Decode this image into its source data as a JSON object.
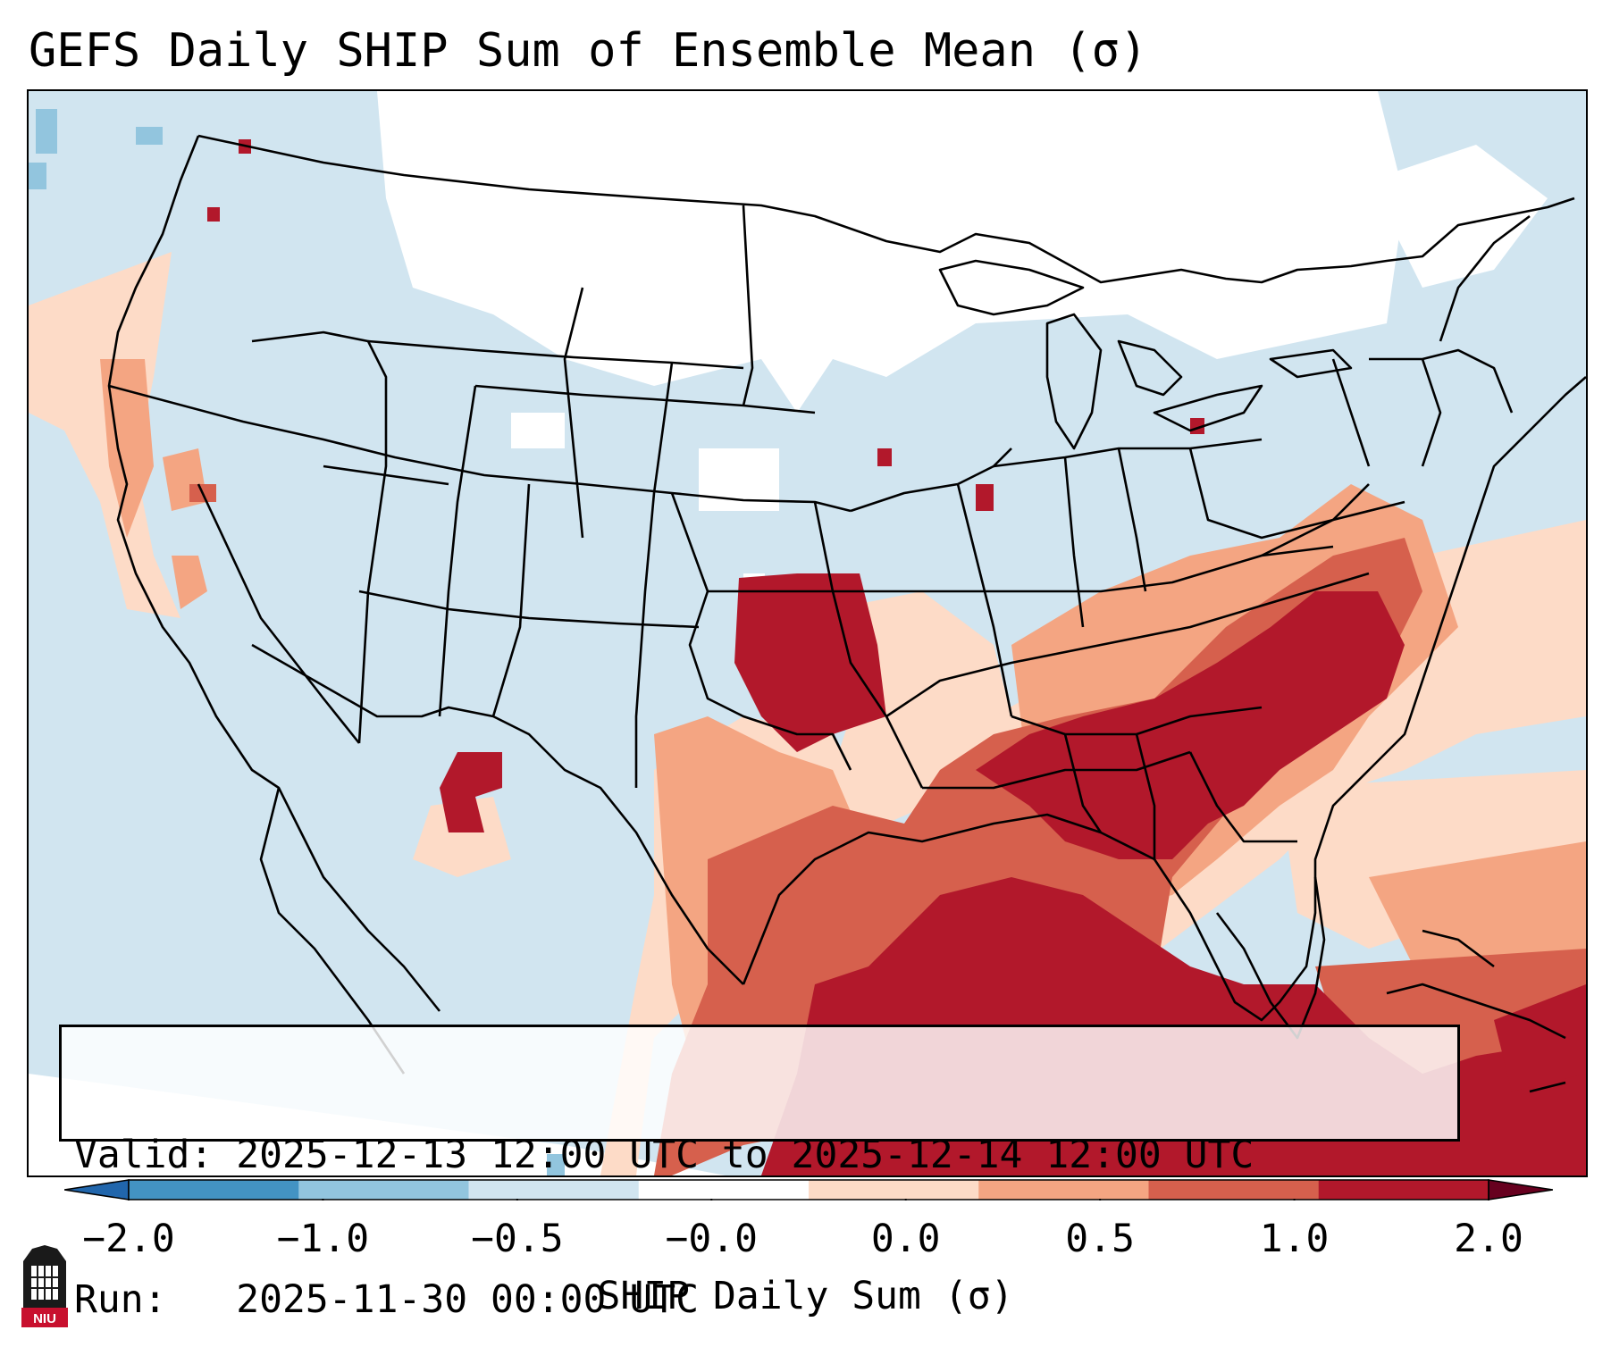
{
  "title": "GEFS Daily SHIP Sum of Ensemble Mean (σ)",
  "info": {
    "valid_label": "Valid:",
    "valid_value": "2025-12-13 12:00 UTC to 2025-12-14 12:00 UTC",
    "run_label": "Run:",
    "run_value": "2025-11-30 00:00 UTC"
  },
  "colorbar": {
    "label": "SHIP Daily Sum (σ)",
    "ticks": [
      "−2.0",
      "−1.0",
      "−0.5",
      "−0.0",
      "0.0",
      "0.5",
      "1.0",
      "2.0"
    ],
    "colors": [
      "#4393c3",
      "#92c5de",
      "#d1e5f0",
      "#ffffff",
      "#fddbc7",
      "#f4a582",
      "#d6604d",
      "#b2182b"
    ],
    "under_color": "#2166ac",
    "over_color": "#67001f",
    "extend": "both"
  },
  "map": {
    "region": "Contiguous United States",
    "background_color": "#d1e5f0",
    "border_color": "#000000"
  },
  "logo": {
    "text": "NIU"
  }
}
